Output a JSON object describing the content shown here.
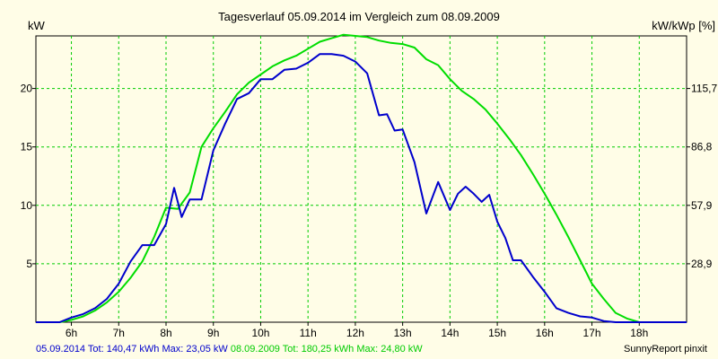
{
  "chart_data": {
    "type": "line",
    "title": "Tagesverlauf 05.09.2014 im Vergleich zum 08.09.2009",
    "ylabel_left": "kW",
    "ylabel_right": "kW/kWp [%]",
    "x_ticks": [
      "6h",
      "7h",
      "8h",
      "9h",
      "10h",
      "11h",
      "12h",
      "13h",
      "14h",
      "15h",
      "16h",
      "17h",
      "18h"
    ],
    "y_ticks": [
      5,
      10,
      15,
      20
    ],
    "y2_ticks": [
      "28,9",
      "57,9",
      "86,8",
      "115,7"
    ],
    "xlim": [
      5.25,
      19.0
    ],
    "ylim": [
      0,
      24.5
    ],
    "grid": true,
    "series": [
      {
        "name": "05.09.2014",
        "color": "#0000cc",
        "x": [
          5.25,
          5.75,
          6.0,
          6.25,
          6.5,
          6.75,
          7.0,
          7.25,
          7.5,
          7.75,
          8.0,
          8.17,
          8.33,
          8.5,
          8.75,
          9.0,
          9.25,
          9.5,
          9.75,
          10.0,
          10.25,
          10.5,
          10.75,
          11.0,
          11.25,
          11.5,
          11.75,
          12.0,
          12.25,
          12.5,
          12.67,
          12.83,
          13.0,
          13.25,
          13.5,
          13.75,
          14.0,
          14.17,
          14.33,
          14.5,
          14.67,
          14.83,
          15.0,
          15.17,
          15.33,
          15.5,
          15.75,
          16.0,
          16.25,
          16.5,
          16.75,
          17.0,
          17.25,
          17.5,
          17.75,
          18.0,
          18.25,
          18.5,
          18.75,
          19.0
        ],
        "values": [
          0.0,
          0.0,
          0.4,
          0.7,
          1.2,
          2.0,
          3.3,
          5.2,
          6.6,
          6.6,
          8.4,
          11.5,
          9.0,
          10.5,
          10.5,
          14.7,
          17.0,
          19.1,
          19.6,
          20.8,
          20.8,
          21.6,
          21.7,
          22.2,
          22.95,
          22.95,
          22.8,
          22.3,
          21.3,
          17.7,
          17.8,
          16.4,
          16.5,
          13.7,
          9.3,
          12.0,
          9.6,
          11.0,
          11.6,
          11.0,
          10.3,
          10.9,
          8.6,
          7.2,
          5.3,
          5.3,
          3.9,
          2.6,
          1.2,
          0.8,
          0.5,
          0.4,
          0.1,
          0.0,
          0.0,
          0.0,
          0.0,
          0.0,
          0.0,
          0.0
        ]
      },
      {
        "name": "08.09.2009",
        "color": "#00dd00",
        "x": [
          5.25,
          5.75,
          6.0,
          6.25,
          6.5,
          6.75,
          7.0,
          7.25,
          7.5,
          7.75,
          8.0,
          8.25,
          8.5,
          8.75,
          9.0,
          9.25,
          9.5,
          9.75,
          10.0,
          10.25,
          10.5,
          10.75,
          11.0,
          11.25,
          11.5,
          11.75,
          12.0,
          12.25,
          12.5,
          12.75,
          13.0,
          13.25,
          13.5,
          13.75,
          14.0,
          14.25,
          14.5,
          14.75,
          15.0,
          15.25,
          15.5,
          15.75,
          16.0,
          16.25,
          16.5,
          16.75,
          17.0,
          17.25,
          17.5,
          17.75,
          18.0,
          18.25,
          18.5,
          18.75,
          19.0
        ],
        "values": [
          0.0,
          0.0,
          0.2,
          0.5,
          1.0,
          1.7,
          2.6,
          3.8,
          5.2,
          7.3,
          9.8,
          9.7,
          11.1,
          15.0,
          16.6,
          18.0,
          19.5,
          20.5,
          21.2,
          21.9,
          22.4,
          22.8,
          23.4,
          24.0,
          24.3,
          24.6,
          24.5,
          24.4,
          24.1,
          23.9,
          23.8,
          23.5,
          22.5,
          22.0,
          20.8,
          19.8,
          19.1,
          18.2,
          17.0,
          15.7,
          14.3,
          12.7,
          11.0,
          9.2,
          7.3,
          5.3,
          3.3,
          2.0,
          0.8,
          0.3,
          0.0,
          0.0,
          0.0,
          0.0,
          0.0
        ]
      }
    ]
  },
  "footer": {
    "blue_text": "05.09.2014 Tot: 140,47 kWh Max: 23,05 kW",
    "green_text": "08.09.2009 Tot: 180,25 kWh Max: 24,80 kW",
    "credit": "SunnyReport pinxit"
  }
}
